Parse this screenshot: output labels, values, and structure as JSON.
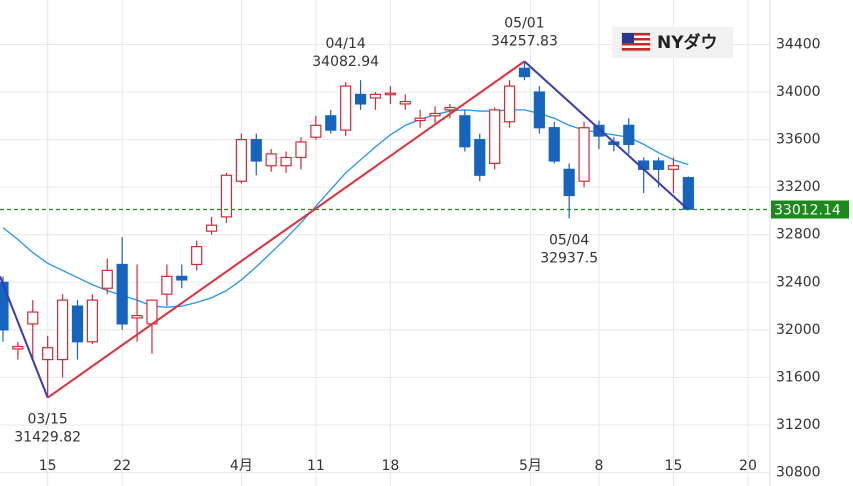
{
  "chart_data": {
    "type": "candlestick",
    "legend": "NYダウ",
    "xlim": [
      -0.2,
      51.48
    ],
    "xticks": [
      {
        "value": 3,
        "label": "15"
      },
      {
        "value": 8,
        "label": "22"
      },
      {
        "value": 16,
        "label": "4月"
      },
      {
        "value": 21,
        "label": "11"
      },
      {
        "value": 26,
        "label": "18"
      },
      {
        "value": 35.4,
        "label": "5月"
      },
      {
        "value": 40,
        "label": "8"
      },
      {
        "value": 45,
        "label": "15"
      },
      {
        "value": 50,
        "label": "20"
      }
    ],
    "ylim": [
      30687,
      34774
    ],
    "yticks": [
      30800,
      31200,
      31600,
      32000,
      32400,
      32800,
      33200,
      33600,
      34000,
      34400
    ],
    "grid": true,
    "up_color": "#d22b35",
    "down_color": "#1565c0",
    "open": [
      32400,
      31840,
      32050,
      31750,
      31750,
      32200,
      31900,
      32350,
      32550,
      32100,
      32050,
      32300,
      32450,
      32550,
      32830,
      32950,
      33250,
      33600,
      33380,
      33380,
      33450,
      33620,
      33800,
      33680,
      33980,
      33950,
      33980,
      33900,
      33760,
      33800,
      33850,
      33800,
      33600,
      33400,
      33750,
      34200,
      34000,
      33700,
      33350,
      33250,
      33720,
      33580,
      33720,
      33420,
      33420,
      33350,
      33280
    ],
    "high": [
      32450,
      31900,
      32250,
      31950,
      32300,
      32250,
      32300,
      32600,
      32780,
      32550,
      32250,
      32550,
      32550,
      32750,
      32950,
      33320,
      33650,
      33650,
      33520,
      33500,
      33620,
      33800,
      33850,
      34082.94,
      34100,
      34000,
      34050,
      33980,
      33850,
      33880,
      33900,
      33850,
      33650,
      33870,
      34100,
      34257.83,
      34050,
      33750,
      33400,
      33750,
      33760,
      33620,
      33780,
      33450,
      33450,
      33450,
      33290
    ],
    "low": [
      31900,
      31750,
      31750,
      31429.82,
      31600,
      31750,
      31880,
      32300,
      32000,
      31900,
      31800,
      32200,
      32350,
      32500,
      32800,
      32900,
      33230,
      33300,
      33330,
      33320,
      33350,
      33600,
      33650,
      33630,
      33850,
      33850,
      33900,
      33850,
      33700,
      33740,
      33780,
      33500,
      33250,
      33350,
      33700,
      34100,
      33650,
      33400,
      32937.5,
      33200,
      33520,
      33500,
      33480,
      33150,
      33200,
      33150,
      33010
    ],
    "close": [
      32000,
      31860,
      32150,
      31850,
      32250,
      31900,
      32250,
      32500,
      32050,
      32120,
      32250,
      32450,
      32420,
      32700,
      32880,
      33300,
      33600,
      33420,
      33480,
      33450,
      33580,
      33720,
      33680,
      34050,
      33900,
      33980,
      33990,
      33920,
      33780,
      33820,
      33870,
      33540,
      33300,
      33850,
      34050,
      34130,
      33700,
      33420,
      33130,
      33700,
      33630,
      33560,
      33560,
      33350,
      33350,
      33380,
      33015
    ],
    "moving_average": {
      "color": "#2196f3",
      "values": [
        32860,
        32760,
        32650,
        32560,
        32500,
        32440,
        32380,
        32330,
        32290,
        32250,
        32200,
        32190,
        32200,
        32230,
        32270,
        32330,
        32420,
        32530,
        32650,
        32770,
        32900,
        33040,
        33180,
        33320,
        33430,
        33540,
        33640,
        33720,
        33770,
        33810,
        33840,
        33850,
        33840,
        33840,
        33850,
        33850,
        33820,
        33780,
        33720,
        33680,
        33660,
        33640,
        33620,
        33560,
        33490,
        33430,
        33390
      ]
    },
    "zigzag": {
      "x": [
        -0.2,
        3,
        35,
        46
      ],
      "values": [
        32450,
        31429.82,
        34257.83,
        33010
      ],
      "colors": [
        "#3a3ab8",
        "#e0303c",
        "#3a3ab8"
      ]
    },
    "annotations": [
      {
        "label": "03/15",
        "x": 3,
        "value": 31429.82
      },
      {
        "label": "04/14",
        "x": 23,
        "value": 34082.94
      },
      {
        "label": "05/01",
        "x": 35,
        "value": 34257.83
      },
      {
        "label": "05/04",
        "x": 38,
        "value": 32937.5
      }
    ],
    "last_price": {
      "value": 33012.14,
      "color": "#1a8a1a"
    }
  }
}
